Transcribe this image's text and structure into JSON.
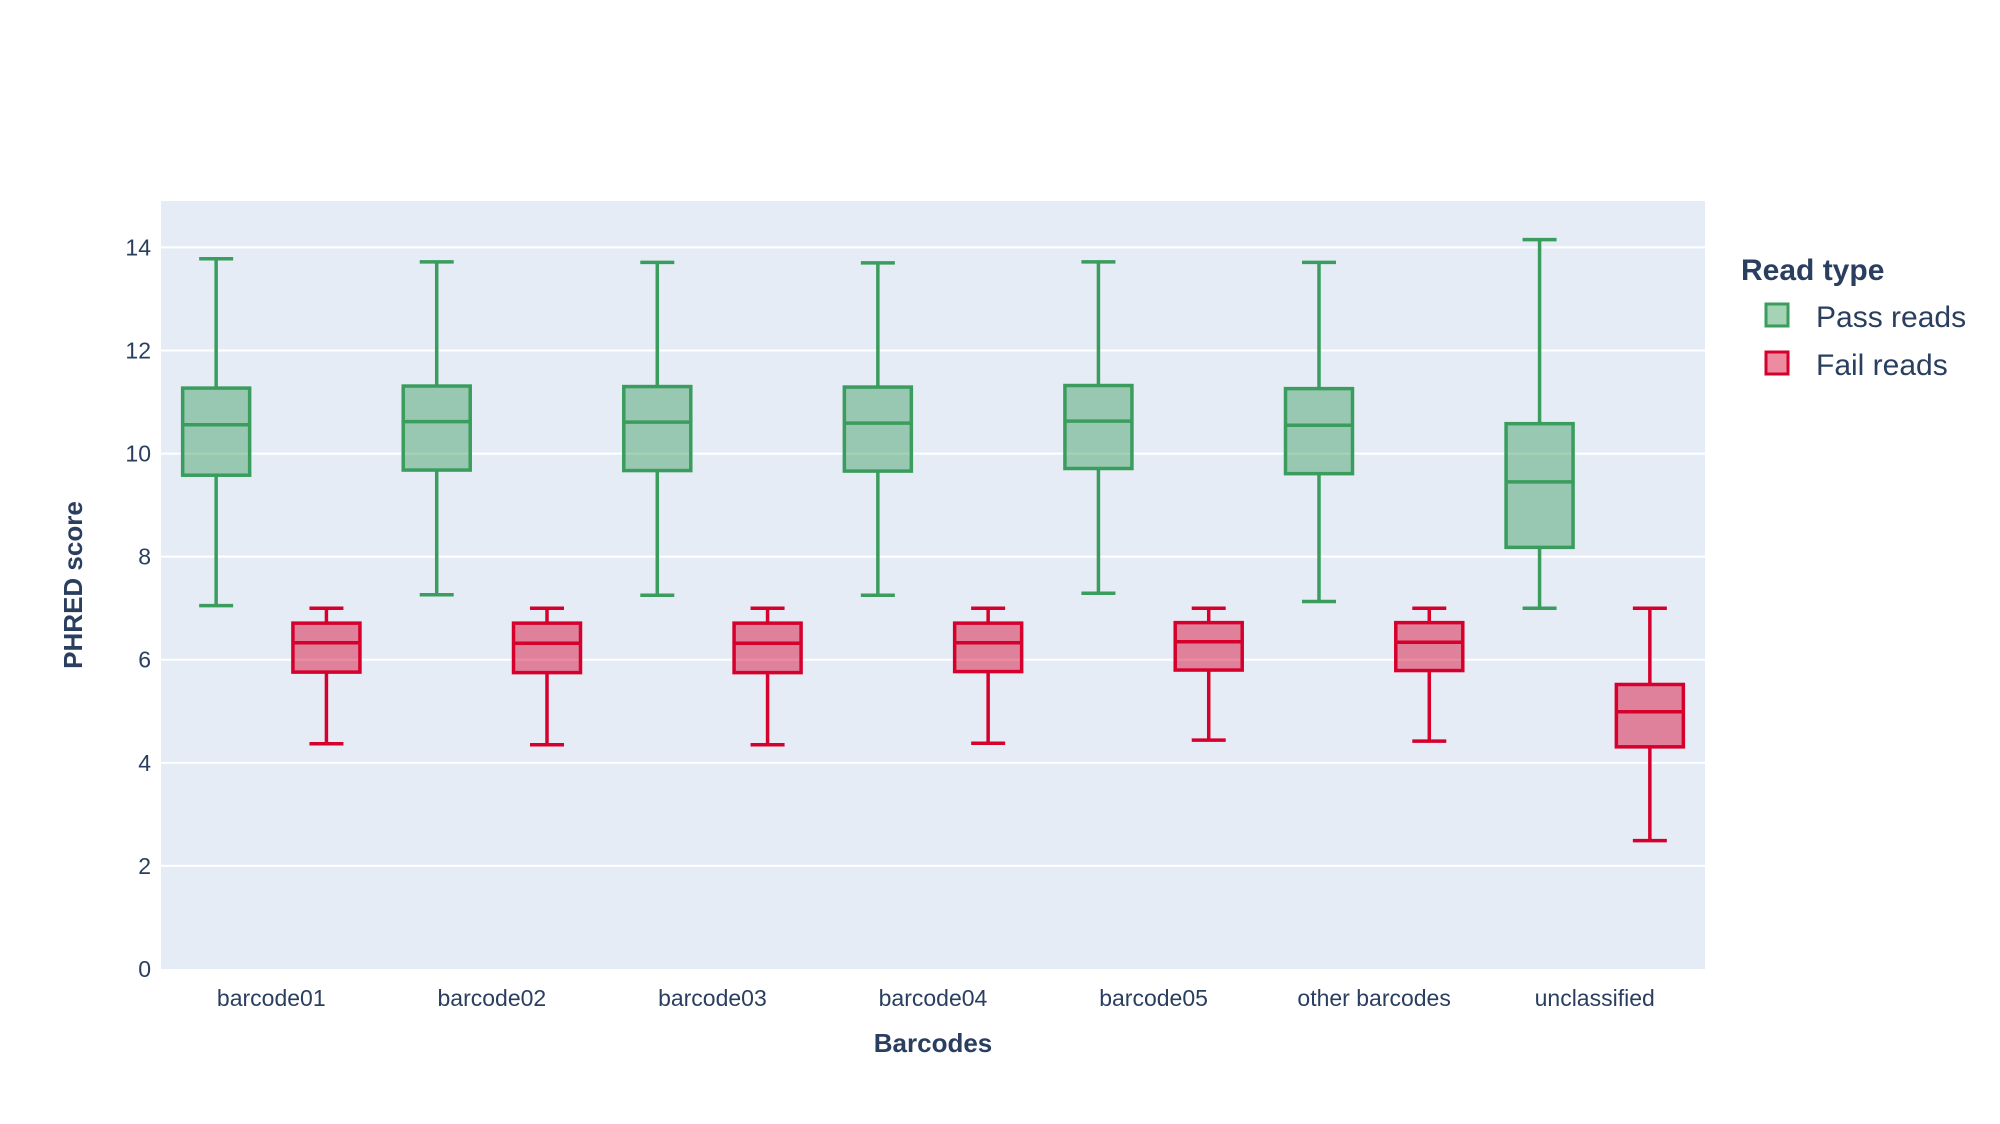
{
  "chart_data": {
    "type": "box",
    "xlabel": "Barcodes",
    "ylabel": "PHRED score",
    "ylim": [
      0,
      14.9
    ],
    "yticks": [
      0,
      2,
      4,
      6,
      8,
      10,
      12,
      14
    ],
    "grid": true,
    "legend": {
      "title": "Read type",
      "position": "top-right"
    },
    "categories": [
      "barcode01",
      "barcode02",
      "barcode03",
      "barcode04",
      "barcode05",
      "other barcodes",
      "unclassified"
    ],
    "series": [
      {
        "name": "Pass reads",
        "color": "#3a9d5d",
        "fill": "rgba(58,157,93,0.45)",
        "boxes": [
          {
            "min": 7.05,
            "q1": 9.58,
            "median": 10.56,
            "q3": 11.27,
            "max": 13.78
          },
          {
            "min": 7.26,
            "q1": 9.68,
            "median": 10.62,
            "q3": 11.31,
            "max": 13.72
          },
          {
            "min": 7.25,
            "q1": 9.67,
            "median": 10.61,
            "q3": 11.3,
            "max": 13.71
          },
          {
            "min": 7.25,
            "q1": 9.66,
            "median": 10.59,
            "q3": 11.29,
            "max": 13.7
          },
          {
            "min": 7.29,
            "q1": 9.71,
            "median": 10.63,
            "q3": 11.32,
            "max": 13.72
          },
          {
            "min": 7.13,
            "q1": 9.61,
            "median": 10.55,
            "q3": 11.26,
            "max": 13.71
          },
          {
            "min": 7.0,
            "q1": 8.18,
            "median": 9.45,
            "q3": 10.58,
            "max": 14.15
          }
        ]
      },
      {
        "name": "Fail reads",
        "color": "#d6002c",
        "fill": "rgba(214,0,44,0.45)",
        "boxes": [
          {
            "min": 4.37,
            "q1": 5.76,
            "median": 6.33,
            "q3": 6.71,
            "max": 7.0
          },
          {
            "min": 4.35,
            "q1": 5.75,
            "median": 6.32,
            "q3": 6.71,
            "max": 7.0
          },
          {
            "min": 4.35,
            "q1": 5.75,
            "median": 6.32,
            "q3": 6.71,
            "max": 7.0
          },
          {
            "min": 4.38,
            "q1": 5.77,
            "median": 6.33,
            "q3": 6.71,
            "max": 7.0
          },
          {
            "min": 4.44,
            "q1": 5.8,
            "median": 6.35,
            "q3": 6.72,
            "max": 7.0
          },
          {
            "min": 4.42,
            "q1": 5.79,
            "median": 6.34,
            "q3": 6.72,
            "max": 7.0
          },
          {
            "min": 2.49,
            "q1": 4.31,
            "median": 4.99,
            "q3": 5.52,
            "max": 7.0
          }
        ]
      }
    ]
  }
}
